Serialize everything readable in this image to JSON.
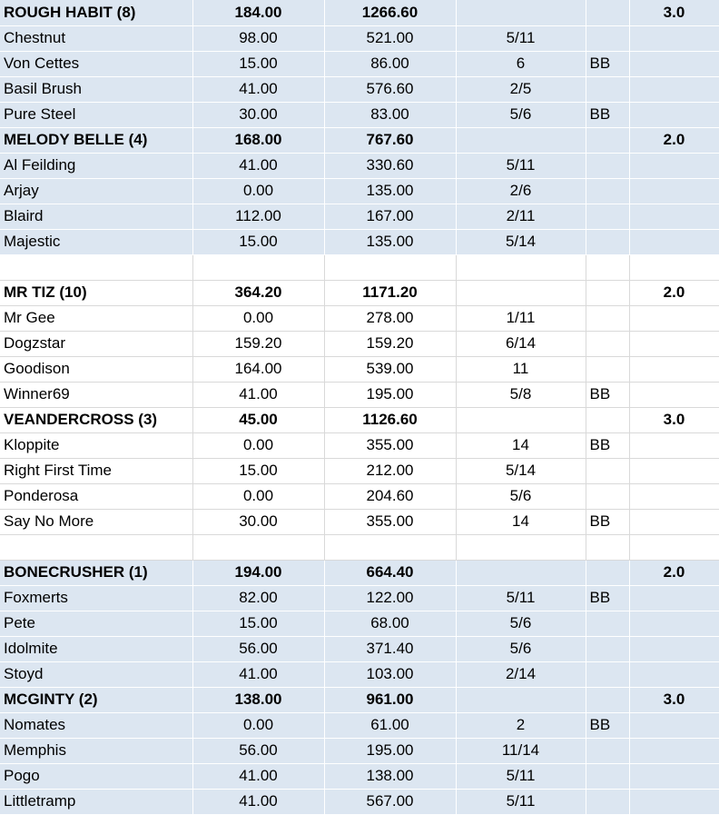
{
  "colors": {
    "shaded_band": "#dce6f1",
    "plain_band": "#ffffff",
    "grid_line": "#d9d9d9"
  },
  "groups": [
    {
      "band": "shaded",
      "teams": [
        {
          "header": {
            "name": "ROUGH HABIT (8)",
            "points": "184.00",
            "total": "1266.60",
            "rating": "3.0"
          },
          "members": [
            {
              "name": "Chestnut",
              "points": "98.00",
              "total": "521.00",
              "odds": "5/11",
              "flag": ""
            },
            {
              "name": "Von Cettes",
              "points": "15.00",
              "total": "86.00",
              "odds": "6",
              "flag": "BB"
            },
            {
              "name": "Basil Brush",
              "points": "41.00",
              "total": "576.60",
              "odds": "2/5",
              "flag": ""
            },
            {
              "name": "Pure Steel",
              "points": "30.00",
              "total": "83.00",
              "odds": "5/6",
              "flag": "BB"
            }
          ]
        },
        {
          "header": {
            "name": "MELODY BELLE (4)",
            "points": "168.00",
            "total": "767.60",
            "rating": "2.0"
          },
          "members": [
            {
              "name": "Al Feilding",
              "points": "41.00",
              "total": "330.60",
              "odds": "5/11",
              "flag": ""
            },
            {
              "name": "Arjay",
              "points": "0.00",
              "total": "135.00",
              "odds": "2/6",
              "flag": ""
            },
            {
              "name": "Blaird",
              "points": "112.00",
              "total": "167.00",
              "odds": "2/11",
              "flag": ""
            },
            {
              "name": "Majestic",
              "points": "15.00",
              "total": "135.00",
              "odds": "5/14",
              "flag": ""
            }
          ]
        }
      ]
    },
    {
      "band": "plain",
      "teams": [
        {
          "header": {
            "name": "MR TIZ (10)",
            "points": "364.20",
            "total": "1171.20",
            "rating": "2.0"
          },
          "members": [
            {
              "name": "Mr Gee",
              "points": "0.00",
              "total": "278.00",
              "odds": "1/11",
              "flag": ""
            },
            {
              "name": "Dogzstar",
              "points": "159.20",
              "total": "159.20",
              "odds": "6/14",
              "flag": ""
            },
            {
              "name": "Goodison",
              "points": "164.00",
              "total": "539.00",
              "odds": "11",
              "flag": ""
            },
            {
              "name": "Winner69",
              "points": "41.00",
              "total": "195.00",
              "odds": "5/8",
              "flag": "BB"
            }
          ]
        },
        {
          "header": {
            "name": "VEANDERCROSS (3)",
            "points": "45.00",
            "total": "1126.60",
            "rating": "3.0"
          },
          "members": [
            {
              "name": "Kloppite",
              "points": "0.00",
              "total": "355.00",
              "odds": "14",
              "flag": "BB"
            },
            {
              "name": "Right First Time",
              "points": "15.00",
              "total": "212.00",
              "odds": "5/14",
              "flag": ""
            },
            {
              "name": "Ponderosa",
              "points": "0.00",
              "total": "204.60",
              "odds": "5/6",
              "flag": ""
            },
            {
              "name": "Say No More",
              "points": "30.00",
              "total": "355.00",
              "odds": "14",
              "flag": "BB"
            }
          ]
        }
      ]
    },
    {
      "band": "shaded",
      "teams": [
        {
          "header": {
            "name": "BONECRUSHER (1)",
            "points": "194.00",
            "total": "664.40",
            "rating": "2.0"
          },
          "members": [
            {
              "name": "Foxmerts",
              "points": "82.00",
              "total": "122.00",
              "odds": "5/11",
              "flag": "BB"
            },
            {
              "name": "Pete",
              "points": "15.00",
              "total": "68.00",
              "odds": "5/6",
              "flag": ""
            },
            {
              "name": "Idolmite",
              "points": "56.00",
              "total": "371.40",
              "odds": "5/6",
              "flag": ""
            },
            {
              "name": "Stoyd",
              "points": "41.00",
              "total": "103.00",
              "odds": "2/14",
              "flag": ""
            }
          ]
        },
        {
          "header": {
            "name": "MCGINTY (2)",
            "points": "138.00",
            "total": "961.00",
            "rating": "3.0"
          },
          "members": [
            {
              "name": "Nomates",
              "points": "0.00",
              "total": "61.00",
              "odds": "2",
              "flag": "BB"
            },
            {
              "name": "Memphis",
              "points": "56.00",
              "total": "195.00",
              "odds": "11/14",
              "flag": ""
            },
            {
              "name": "Pogo",
              "points": "41.00",
              "total": "138.00",
              "odds": "5/11",
              "flag": ""
            },
            {
              "name": "Littletramp",
              "points": "41.00",
              "total": "567.00",
              "odds": "5/11",
              "flag": ""
            }
          ]
        }
      ]
    }
  ]
}
